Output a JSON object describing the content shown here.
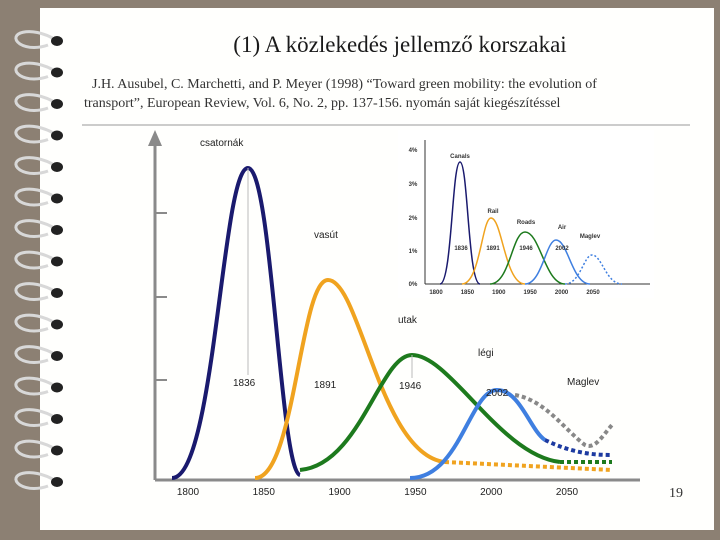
{
  "header": {
    "title": "(1) A közlekedés jellemző korszakai",
    "citation": [
      "J.H. Ausubel, C. Marchetti, and P. Meyer  (1998) “Toward green mobility: the evolution of",
      "transport”, European Review, Vol. 6, No. 2, pp. 137-156. nyomán saját kiegészítéssel"
    ]
  },
  "diagram": {
    "curve_labels": [
      "csatornák",
      "vasút",
      "utak",
      "légi"
    ],
    "peak_years": [
      "1836",
      "1891",
      "1946",
      "2002"
    ],
    "maglev": "Maglev",
    "x_labels": [
      "1800",
      "1850",
      "1900",
      "1950",
      "2000",
      "2050"
    ]
  },
  "inset": {
    "y_labels": [
      "4%",
      "3%",
      "2%",
      "1%",
      "0%"
    ],
    "mode_labels": [
      "Canals",
      "Rail",
      "Roads",
      "Air",
      "Maglev"
    ],
    "peak_years": [
      "1836",
      "1891",
      "1946",
      "2002"
    ],
    "x_labels": [
      "1800",
      "1850",
      "1900",
      "1950",
      "2000",
      "2050"
    ]
  },
  "page_number": "19"
}
